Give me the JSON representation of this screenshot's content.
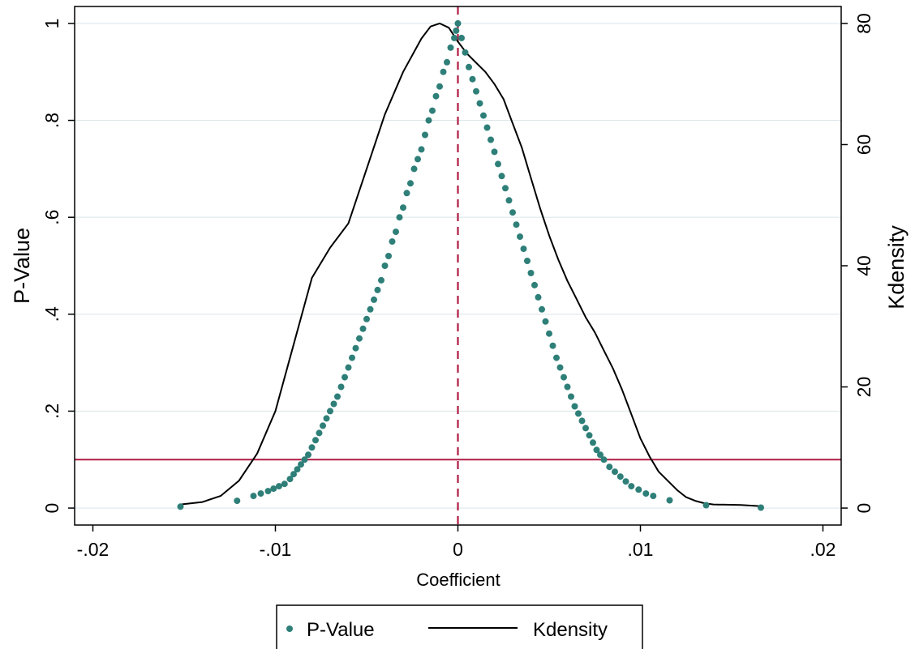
{
  "chart_data": {
    "type": "scatter",
    "title": "",
    "xlabel": "Coefficient",
    "ylabel": "P-Value",
    "y2label": "Kdensity",
    "xlim": [
      -0.021,
      0.021
    ],
    "ylim": [
      -0.035,
      1.035
    ],
    "y2lim": [
      -2.8,
      82.8
    ],
    "xticks": [
      -0.02,
      -0.01,
      0,
      0.01,
      0.02
    ],
    "xtick_labels": [
      "-.02",
      "-.01",
      "0",
      ".01",
      ".02"
    ],
    "yticks": [
      0,
      0.2,
      0.4,
      0.6,
      0.8,
      1
    ],
    "ytick_labels": [
      "0",
      ".2",
      ".4",
      ".6",
      ".8",
      "1"
    ],
    "y2ticks": [
      0,
      20,
      40,
      60,
      80
    ],
    "y2tick_labels": [
      "0",
      "20",
      "40",
      "60",
      "80"
    ],
    "grid": true,
    "reference_lines": {
      "vertical_x": 0,
      "horizontal_y": 0.1,
      "color": "#b01c44"
    },
    "colors": {
      "pvalue": "#2f7f79",
      "kdensity": "#000000",
      "grid": "#dde8ec",
      "reference": "#b01c44"
    },
    "legend": {
      "position": "bottom",
      "entries": [
        "P-Value",
        "Kdensity"
      ]
    },
    "series": [
      {
        "name": "P-Value",
        "kind": "scatter",
        "points": [
          [
            -0.0152,
            0.003
          ],
          [
            -0.0121,
            0.015
          ],
          [
            -0.0112,
            0.025
          ],
          [
            -0.0108,
            0.03
          ],
          [
            -0.0104,
            0.035
          ],
          [
            -0.0101,
            0.04
          ],
          [
            -0.0098,
            0.045
          ],
          [
            -0.0095,
            0.05
          ],
          [
            -0.0092,
            0.06
          ],
          [
            -0.009,
            0.07
          ],
          [
            -0.0088,
            0.08
          ],
          [
            -0.0086,
            0.09
          ],
          [
            -0.0084,
            0.1
          ],
          [
            -0.0082,
            0.11
          ],
          [
            -0.008,
            0.125
          ],
          [
            -0.0078,
            0.14
          ],
          [
            -0.0076,
            0.155
          ],
          [
            -0.0074,
            0.17
          ],
          [
            -0.0072,
            0.185
          ],
          [
            -0.007,
            0.2
          ],
          [
            -0.0068,
            0.215
          ],
          [
            -0.0066,
            0.23
          ],
          [
            -0.0064,
            0.25
          ],
          [
            -0.0062,
            0.27
          ],
          [
            -0.006,
            0.29
          ],
          [
            -0.0058,
            0.31
          ],
          [
            -0.0056,
            0.33
          ],
          [
            -0.0054,
            0.35
          ],
          [
            -0.0052,
            0.37
          ],
          [
            -0.005,
            0.39
          ],
          [
            -0.0048,
            0.41
          ],
          [
            -0.0046,
            0.43
          ],
          [
            -0.0044,
            0.45
          ],
          [
            -0.0042,
            0.47
          ],
          [
            -0.004,
            0.5
          ],
          [
            -0.0038,
            0.52
          ],
          [
            -0.0036,
            0.55
          ],
          [
            -0.0034,
            0.57
          ],
          [
            -0.0032,
            0.6
          ],
          [
            -0.003,
            0.62
          ],
          [
            -0.0028,
            0.65
          ],
          [
            -0.0026,
            0.67
          ],
          [
            -0.0024,
            0.7
          ],
          [
            -0.0022,
            0.72
          ],
          [
            -0.002,
            0.74
          ],
          [
            -0.0018,
            0.77
          ],
          [
            -0.0016,
            0.8
          ],
          [
            -0.0014,
            0.82
          ],
          [
            -0.0012,
            0.85
          ],
          [
            -0.001,
            0.87
          ],
          [
            -0.0008,
            0.9
          ],
          [
            -0.0006,
            0.92
          ],
          [
            -0.0004,
            0.95
          ],
          [
            -0.0002,
            0.97
          ],
          [
            -0.0001,
            0.985
          ],
          [
            0.0,
            1.0
          ],
          [
            0.0002,
            0.97
          ],
          [
            0.0004,
            0.94
          ],
          [
            0.0006,
            0.91
          ],
          [
            0.0008,
            0.885
          ],
          [
            0.001,
            0.86
          ],
          [
            0.0012,
            0.835
          ],
          [
            0.0014,
            0.81
          ],
          [
            0.0016,
            0.785
          ],
          [
            0.0018,
            0.76
          ],
          [
            0.002,
            0.735
          ],
          [
            0.0022,
            0.71
          ],
          [
            0.0024,
            0.685
          ],
          [
            0.0026,
            0.66
          ],
          [
            0.0028,
            0.635
          ],
          [
            0.003,
            0.61
          ],
          [
            0.0032,
            0.585
          ],
          [
            0.0034,
            0.56
          ],
          [
            0.0036,
            0.535
          ],
          [
            0.0038,
            0.51
          ],
          [
            0.004,
            0.485
          ],
          [
            0.0042,
            0.46
          ],
          [
            0.0044,
            0.435
          ],
          [
            0.0046,
            0.41
          ],
          [
            0.0048,
            0.385
          ],
          [
            0.005,
            0.36
          ],
          [
            0.0052,
            0.335
          ],
          [
            0.0054,
            0.31
          ],
          [
            0.0056,
            0.29
          ],
          [
            0.0058,
            0.27
          ],
          [
            0.006,
            0.25
          ],
          [
            0.0062,
            0.23
          ],
          [
            0.0064,
            0.21
          ],
          [
            0.0066,
            0.195
          ],
          [
            0.0068,
            0.18
          ],
          [
            0.007,
            0.165
          ],
          [
            0.0072,
            0.15
          ],
          [
            0.0074,
            0.135
          ],
          [
            0.0076,
            0.12
          ],
          [
            0.0078,
            0.11
          ],
          [
            0.008,
            0.1
          ],
          [
            0.0083,
            0.085
          ],
          [
            0.0086,
            0.075
          ],
          [
            0.0089,
            0.065
          ],
          [
            0.0092,
            0.055
          ],
          [
            0.0095,
            0.045
          ],
          [
            0.0099,
            0.038
          ],
          [
            0.0103,
            0.03
          ],
          [
            0.0107,
            0.025
          ],
          [
            0.0116,
            0.016
          ],
          [
            0.0136,
            0.006
          ],
          [
            0.0166,
            0.001
          ]
        ]
      },
      {
        "name": "Kdensity",
        "kind": "line",
        "points": [
          [
            -0.0152,
            0.6
          ],
          [
            -0.014,
            1.0
          ],
          [
            -0.013,
            2.0
          ],
          [
            -0.012,
            4.5
          ],
          [
            -0.011,
            9.0
          ],
          [
            -0.01,
            16.0
          ],
          [
            -0.009,
            27.0
          ],
          [
            -0.008,
            38.0
          ],
          [
            -0.007,
            43.0
          ],
          [
            -0.006,
            47.0
          ],
          [
            -0.005,
            56.0
          ],
          [
            -0.004,
            65.0
          ],
          [
            -0.003,
            72.0
          ],
          [
            -0.002,
            77.5
          ],
          [
            -0.0015,
            79.5
          ],
          [
            -0.001,
            80.0
          ],
          [
            -0.0005,
            79.3
          ],
          [
            0.0,
            77.0
          ],
          [
            0.0005,
            75.0
          ],
          [
            0.001,
            73.5
          ],
          [
            0.0015,
            72.0
          ],
          [
            0.002,
            70.0
          ],
          [
            0.0025,
            67.5
          ],
          [
            0.003,
            63.5
          ],
          [
            0.0035,
            59.5
          ],
          [
            0.004,
            54.5
          ],
          [
            0.0045,
            49.5
          ],
          [
            0.005,
            45.0
          ],
          [
            0.0055,
            41.0
          ],
          [
            0.006,
            37.5
          ],
          [
            0.0065,
            34.5
          ],
          [
            0.007,
            31.5
          ],
          [
            0.0075,
            29.0
          ],
          [
            0.008,
            26.0
          ],
          [
            0.0085,
            23.0
          ],
          [
            0.009,
            19.5
          ],
          [
            0.0095,
            15.5
          ],
          [
            0.01,
            11.5
          ],
          [
            0.0105,
            8.5
          ],
          [
            0.011,
            6.0
          ],
          [
            0.0115,
            4.5
          ],
          [
            0.012,
            3.0
          ],
          [
            0.0125,
            1.8
          ],
          [
            0.013,
            1.2
          ],
          [
            0.0135,
            0.8
          ],
          [
            0.014,
            0.6
          ],
          [
            0.0155,
            0.5
          ],
          [
            0.0166,
            0.3
          ]
        ]
      }
    ]
  }
}
